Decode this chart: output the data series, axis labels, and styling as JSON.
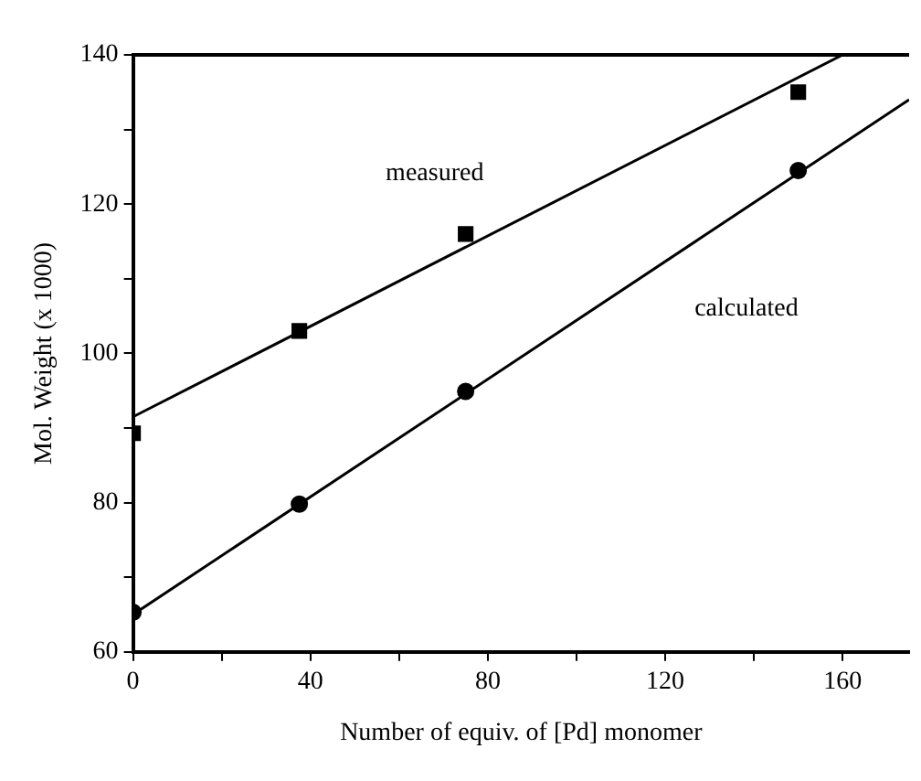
{
  "chart_data": {
    "type": "scatter",
    "xlabel": "Number of equiv. of [Pd] monomer",
    "ylabel": "Mol. Weight (x 1000)",
    "xlim": [
      0,
      175
    ],
    "xticks": [
      0,
      {
        "value": 20,
        "label": null
      },
      40,
      {
        "value": 60,
        "label": null
      },
      80,
      {
        "value": 100,
        "label": null
      },
      120,
      {
        "value": 140,
        "label": null
      },
      160
    ],
    "ylim": [
      60,
      140
    ],
    "yticks": [
      60,
      {
        "value": 70,
        "label": null
      },
      80,
      {
        "value": 90,
        "label": null
      },
      100,
      {
        "value": 110,
        "label": null
      },
      120,
      {
        "value": 130,
        "label": null
      },
      140
    ],
    "grid": false,
    "legend": false,
    "series": [
      {
        "marker": "square",
        "color": "#000000",
        "x": [
          0,
          37.5,
          75,
          150
        ],
        "values": [
          89.3,
          103,
          116,
          135
        ]
      },
      {
        "marker": "circle",
        "color": "#000000",
        "x": [
          0,
          37.5,
          75,
          150
        ],
        "values": [
          65.3,
          79.8,
          94.9,
          124.5
        ]
      },
      {
        "type": "line",
        "name": "measured",
        "marker": "none",
        "line_style": "solid",
        "color": "#000000",
        "x": [
          0,
          160
        ],
        "values": [
          91.5,
          140
        ]
      },
      {
        "type": "line",
        "name": "calculated",
        "marker": "none",
        "line_style": "solid",
        "color": "#000000",
        "x": [
          0,
          175
        ],
        "values": [
          65,
          134
        ]
      }
    ]
  }
}
